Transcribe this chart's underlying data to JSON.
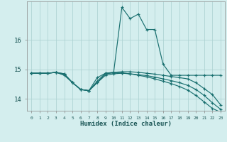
{
  "xlabel": "Humidex (Indice chaleur)",
  "bg_color": "#d4eeee",
  "grid_color": "#afd4d4",
  "line_color": "#1a7070",
  "xlim": [
    -0.5,
    23.5
  ],
  "ylim": [
    13.6,
    17.3
  ],
  "yticks": [
    14,
    15,
    16
  ],
  "xticks": [
    0,
    1,
    2,
    3,
    4,
    5,
    6,
    7,
    8,
    9,
    10,
    11,
    12,
    13,
    14,
    15,
    16,
    17,
    18,
    19,
    20,
    21,
    22,
    23
  ],
  "lines": [
    {
      "x": [
        0,
        1,
        2,
        3,
        4,
        5,
        6,
        7,
        8,
        9,
        10,
        11,
        12,
        13,
        14,
        15,
        16,
        17,
        18,
        19,
        20,
        21,
        22,
        23
      ],
      "y": [
        14.87,
        14.87,
        14.87,
        14.9,
        14.85,
        14.55,
        14.32,
        14.28,
        14.72,
        14.87,
        14.9,
        17.1,
        16.72,
        16.87,
        16.35,
        16.35,
        15.18,
        14.8,
        14.8,
        14.8,
        14.8,
        14.8,
        14.8,
        14.8
      ]
    },
    {
      "x": [
        0,
        1,
        2,
        3,
        4,
        5,
        6,
        7,
        8,
        9,
        10,
        11,
        12,
        13,
        14,
        15,
        16,
        17,
        18,
        19,
        20,
        21,
        22,
        23
      ],
      "y": [
        14.87,
        14.87,
        14.87,
        14.9,
        14.85,
        14.55,
        14.32,
        14.28,
        14.6,
        14.87,
        14.9,
        14.92,
        14.92,
        14.9,
        14.87,
        14.84,
        14.8,
        14.76,
        14.72,
        14.68,
        14.55,
        14.35,
        14.15,
        13.8
      ]
    },
    {
      "x": [
        0,
        1,
        2,
        3,
        4,
        5,
        6,
        7,
        8,
        9,
        10,
        11,
        12,
        13,
        14,
        15,
        16,
        17,
        18,
        19,
        20,
        21,
        22,
        23
      ],
      "y": [
        14.87,
        14.87,
        14.87,
        14.9,
        14.82,
        14.55,
        14.32,
        14.28,
        14.55,
        14.85,
        14.88,
        14.88,
        14.85,
        14.82,
        14.79,
        14.74,
        14.68,
        14.62,
        14.55,
        14.46,
        14.32,
        14.12,
        13.87,
        13.65
      ]
    },
    {
      "x": [
        0,
        1,
        2,
        3,
        4,
        5,
        6,
        7,
        8,
        9,
        10,
        11,
        12,
        13,
        14,
        15,
        16,
        17,
        18,
        19,
        20,
        21,
        22,
        23
      ],
      "y": [
        14.87,
        14.87,
        14.87,
        14.9,
        14.8,
        14.55,
        14.32,
        14.28,
        14.55,
        14.8,
        14.85,
        14.87,
        14.85,
        14.8,
        14.75,
        14.68,
        14.6,
        14.52,
        14.42,
        14.3,
        14.12,
        13.9,
        13.68,
        13.55
      ]
    }
  ]
}
